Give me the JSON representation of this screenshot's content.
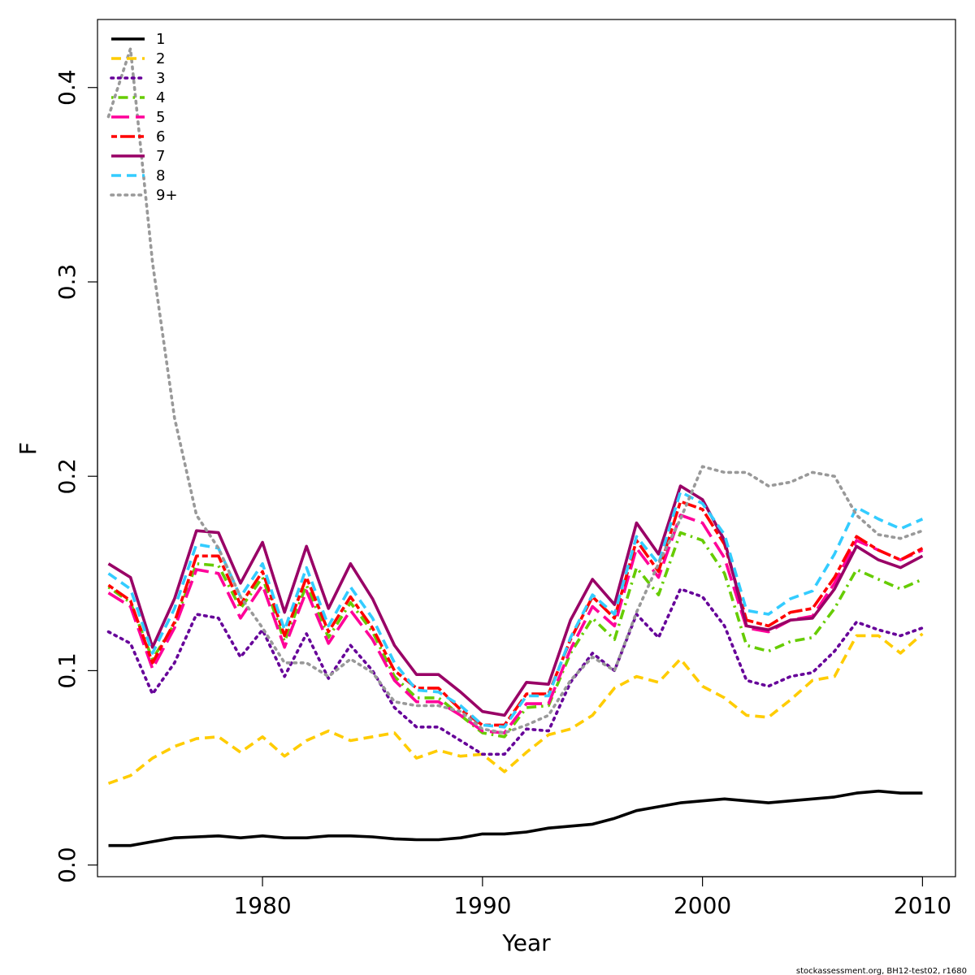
{
  "chart_data": {
    "type": "line",
    "xlabel": "Year",
    "ylabel": "F",
    "xlim": [
      1972.5,
      2011.5
    ],
    "ylim": [
      -0.006,
      0.435
    ],
    "x_ticks": [
      1980,
      1990,
      2000,
      2010
    ],
    "y_ticks": [
      0.0,
      0.1,
      0.2,
      0.3,
      0.4
    ],
    "x_tick_labels": [
      "1980",
      "1990",
      "2000",
      "2010"
    ],
    "y_tick_labels": [
      "0.0",
      "0.1",
      "0.2",
      "0.3",
      "0.4"
    ],
    "legend_position": "top-left",
    "footer": "stockassessment.org, BH12-test02, r1680",
    "x": [
      1973,
      1974,
      1975,
      1976,
      1977,
      1978,
      1979,
      1980,
      1981,
      1982,
      1983,
      1984,
      1985,
      1986,
      1987,
      1988,
      1989,
      1990,
      1991,
      1992,
      1993,
      1994,
      1995,
      1996,
      1997,
      1998,
      1999,
      2000,
      2001,
      2002,
      2003,
      2004,
      2005,
      2006,
      2007,
      2008,
      2009,
      2010
    ],
    "series": [
      {
        "name": "1",
        "color": "#000000",
        "dash": "solid",
        "values": [
          0.01,
          0.01,
          0.012,
          0.014,
          0.0145,
          0.015,
          0.014,
          0.015,
          0.014,
          0.014,
          0.015,
          0.015,
          0.0145,
          0.0135,
          0.013,
          0.013,
          0.014,
          0.016,
          0.016,
          0.017,
          0.019,
          0.02,
          0.021,
          0.024,
          0.028,
          0.03,
          0.032,
          0.033,
          0.034,
          0.033,
          0.032,
          0.033,
          0.034,
          0.035,
          0.037,
          0.038,
          0.037,
          0.037
        ]
      },
      {
        "name": "2",
        "color": "#FFCC00",
        "dash": "dashed",
        "values": [
          0.042,
          0.046,
          0.055,
          0.061,
          0.065,
          0.066,
          0.058,
          0.066,
          0.056,
          0.064,
          0.069,
          0.064,
          0.066,
          0.068,
          0.055,
          0.059,
          0.056,
          0.057,
          0.048,
          0.058,
          0.067,
          0.07,
          0.077,
          0.091,
          0.097,
          0.094,
          0.106,
          0.092,
          0.086,
          0.077,
          0.076,
          0.085,
          0.095,
          0.097,
          0.118,
          0.118,
          0.109,
          0.119
        ]
      },
      {
        "name": "3",
        "color": "#660099",
        "dash": "dotted",
        "values": [
          0.12,
          0.114,
          0.088,
          0.104,
          0.129,
          0.127,
          0.107,
          0.121,
          0.097,
          0.119,
          0.096,
          0.113,
          0.1,
          0.081,
          0.071,
          0.071,
          0.064,
          0.057,
          0.057,
          0.07,
          0.069,
          0.094,
          0.109,
          0.1,
          0.129,
          0.117,
          0.142,
          0.138,
          0.123,
          0.095,
          0.092,
          0.097,
          0.099,
          0.11,
          0.125,
          0.121,
          0.118,
          0.122
        ]
      },
      {
        "name": "4",
        "color": "#66CC00",
        "dash": "dotdash",
        "values": [
          0.143,
          0.135,
          0.106,
          0.124,
          0.155,
          0.154,
          0.132,
          0.148,
          0.115,
          0.144,
          0.117,
          0.135,
          0.12,
          0.097,
          0.086,
          0.086,
          0.077,
          0.068,
          0.066,
          0.081,
          0.082,
          0.109,
          0.127,
          0.116,
          0.153,
          0.139,
          0.171,
          0.167,
          0.15,
          0.113,
          0.11,
          0.115,
          0.117,
          0.132,
          0.152,
          0.147,
          0.142,
          0.147
        ]
      },
      {
        "name": "5",
        "color": "#FF0099",
        "dash": "longdash",
        "values": [
          0.14,
          0.133,
          0.101,
          0.122,
          0.152,
          0.15,
          0.127,
          0.144,
          0.112,
          0.141,
          0.114,
          0.131,
          0.116,
          0.095,
          0.084,
          0.084,
          0.077,
          0.069,
          0.068,
          0.083,
          0.083,
          0.111,
          0.133,
          0.123,
          0.163,
          0.148,
          0.18,
          0.176,
          0.158,
          0.122,
          0.12,
          0.126,
          0.128,
          0.145,
          0.167,
          0.162,
          0.157,
          0.162
        ]
      },
      {
        "name": "6",
        "color": "#FF0000",
        "dash": "twodash",
        "values": [
          0.144,
          0.136,
          0.104,
          0.125,
          0.159,
          0.159,
          0.134,
          0.151,
          0.118,
          0.148,
          0.12,
          0.138,
          0.122,
          0.1,
          0.091,
          0.091,
          0.08,
          0.072,
          0.072,
          0.088,
          0.088,
          0.116,
          0.138,
          0.127,
          0.167,
          0.151,
          0.187,
          0.183,
          0.165,
          0.126,
          0.123,
          0.13,
          0.132,
          0.148,
          0.169,
          0.162,
          0.157,
          0.163
        ]
      },
      {
        "name": "7",
        "color": "#990066",
        "dash": "solid",
        "values": [
          0.155,
          0.148,
          0.112,
          0.137,
          0.172,
          0.171,
          0.145,
          0.166,
          0.13,
          0.164,
          0.132,
          0.155,
          0.137,
          0.113,
          0.098,
          0.098,
          0.089,
          0.079,
          0.077,
          0.094,
          0.093,
          0.126,
          0.147,
          0.134,
          0.176,
          0.16,
          0.195,
          0.188,
          0.167,
          0.123,
          0.121,
          0.126,
          0.127,
          0.142,
          0.164,
          0.157,
          0.153,
          0.159
        ]
      },
      {
        "name": "8",
        "color": "#33CCFF",
        "dash": "dashed",
        "values": [
          0.15,
          0.142,
          0.109,
          0.132,
          0.165,
          0.163,
          0.138,
          0.155,
          0.121,
          0.153,
          0.123,
          0.143,
          0.127,
          0.104,
          0.09,
          0.089,
          0.082,
          0.072,
          0.071,
          0.087,
          0.087,
          0.117,
          0.139,
          0.129,
          0.169,
          0.155,
          0.192,
          0.186,
          0.17,
          0.131,
          0.129,
          0.137,
          0.141,
          0.16,
          0.184,
          0.178,
          0.173,
          0.178
        ]
      },
      {
        "name": "9+",
        "color": "#999999",
        "dash": "dotted",
        "values": [
          0.385,
          0.42,
          0.31,
          0.23,
          0.18,
          0.163,
          0.138,
          0.122,
          0.104,
          0.104,
          0.097,
          0.106,
          0.099,
          0.084,
          0.082,
          0.082,
          0.079,
          0.07,
          0.068,
          0.072,
          0.077,
          0.095,
          0.107,
          0.1,
          0.13,
          0.155,
          0.178,
          0.205,
          0.202,
          0.202,
          0.195,
          0.197,
          0.202,
          0.2,
          0.18,
          0.17,
          0.168,
          0.172
        ]
      }
    ]
  }
}
